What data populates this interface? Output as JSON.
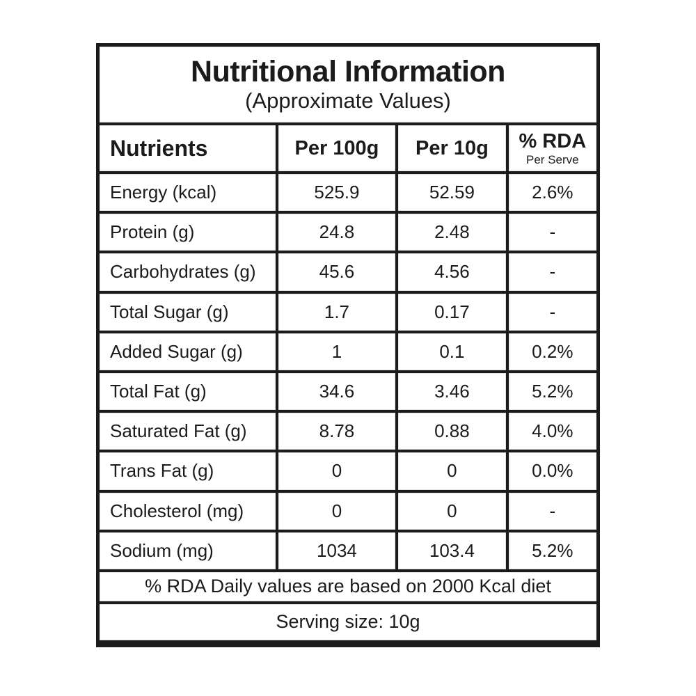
{
  "colors": {
    "background": "#ffffff",
    "grid_border": "#1b1b1b",
    "text": "#1b1b1b"
  },
  "title": "Nutritional Information",
  "subtitle": "(Approximate Values)",
  "header": {
    "nutrients": "Nutrients",
    "per_100g": "Per 100g",
    "per_10g": "Per 10g",
    "rda": "% RDA",
    "rda_sub": "Per Serve"
  },
  "rows": [
    {
      "nutrient": "Energy (kcal)",
      "per_100g": "525.9",
      "per_10g": "52.59",
      "rda": "2.6%"
    },
    {
      "nutrient": "Protein (g)",
      "per_100g": "24.8",
      "per_10g": "2.48",
      "rda": "-"
    },
    {
      "nutrient": "Carbohydrates (g)",
      "per_100g": "45.6",
      "per_10g": "4.56",
      "rda": "-"
    },
    {
      "nutrient": "Total Sugar (g)",
      "per_100g": "1.7",
      "per_10g": "0.17",
      "rda": "-"
    },
    {
      "nutrient": "Added Sugar (g)",
      "per_100g": "1",
      "per_10g": "0.1",
      "rda": "0.2%"
    },
    {
      "nutrient": "Total Fat (g)",
      "per_100g": "34.6",
      "per_10g": "3.46",
      "rda": "5.2%"
    },
    {
      "nutrient": "Saturated Fat (g)",
      "per_100g": "8.78",
      "per_10g": "0.88",
      "rda": "4.0%"
    },
    {
      "nutrient": "Trans Fat (g)",
      "per_100g": "0",
      "per_10g": "0",
      "rda": "0.0%"
    },
    {
      "nutrient": "Cholesterol (mg)",
      "per_100g": "0",
      "per_10g": "0",
      "rda": "-"
    },
    {
      "nutrient": "Sodium (mg)",
      "per_100g": "1034",
      "per_10g": "103.4",
      "rda": "5.2%"
    }
  ],
  "footnote": "% RDA Daily values are based on 2000 Kcal diet",
  "serving": "Serving size: 10g"
}
